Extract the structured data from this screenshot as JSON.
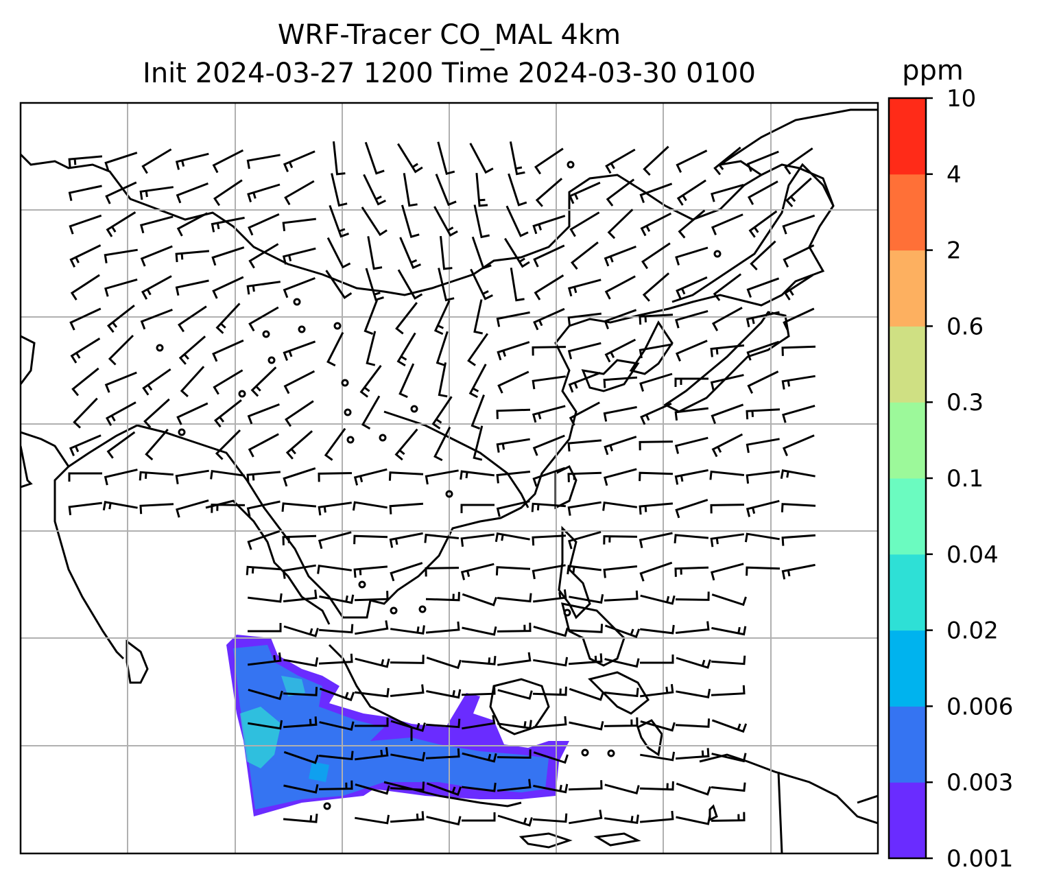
{
  "title": {
    "line1": "WRF-Tracer CO_MAL 4km",
    "line2": "Init 2024-03-27 1200 Time 2024-03-30 0100"
  },
  "colorbar": {
    "units": "ppm",
    "ticks": [
      "0.001",
      "0.003",
      "0.006",
      "0.02",
      "0.04",
      "0.1",
      "0.3",
      "0.6",
      "2",
      "4",
      "10"
    ],
    "colors": [
      "#6a2cff",
      "#3574f2",
      "#00b3ee",
      "#2ee0d6",
      "#6bfbc0",
      "#9cf99a",
      "#cfe083",
      "#fdb060",
      "#ff7037",
      "#ff2b18"
    ]
  },
  "map": {
    "grid": true,
    "wind_barbs": true
  }
}
